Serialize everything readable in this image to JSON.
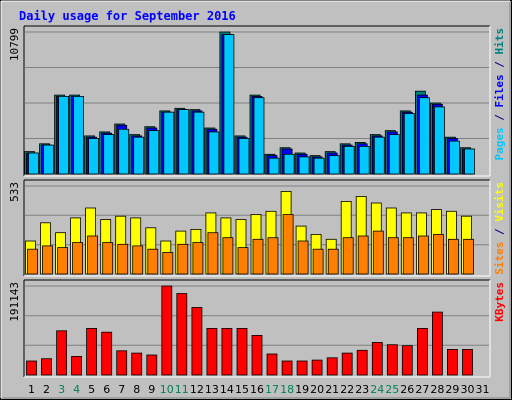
{
  "chart_data": {
    "type": "bar",
    "title": "Daily usage for September 2016",
    "days": [
      "1",
      "2",
      "3",
      "4",
      "5",
      "6",
      "7",
      "8",
      "9",
      "10",
      "11",
      "12",
      "13",
      "14",
      "15",
      "16",
      "17",
      "18",
      "19",
      "20",
      "21",
      "22",
      "23",
      "24",
      "25",
      "26",
      "27",
      "28",
      "29",
      "30",
      "31"
    ],
    "weekend_days": [
      "3",
      "4",
      "10",
      "11",
      "17",
      "18",
      "24",
      "25"
    ],
    "panels": [
      {
        "id": "hits",
        "ylabel_max": "10799",
        "ymax": 10799,
        "grid": true,
        "legend": [
          {
            "text": "Pages",
            "color": "#00c8ff"
          },
          {
            "text": " / ",
            "color": "#000080"
          },
          {
            "text": "Files",
            "color": "#0000ff"
          },
          {
            "text": " / ",
            "color": "#000080"
          },
          {
            "text": "Hits",
            "color": "#008080"
          }
        ],
        "series": [
          {
            "key": "hits",
            "color": "#008080",
            "values": [
              1700,
              2300,
              6000,
              6000,
              2900,
              3200,
              3800,
              3000,
              3600,
              4800,
              5000,
              4900,
              3500,
              10799,
              2900,
              6000,
              1500,
              2000,
              1600,
              1400,
              1700,
              2300,
              2400,
              3000,
              3300,
              4800,
              6300,
              5400,
              2800,
              2000,
              0
            ]
          },
          {
            "key": "files",
            "color": "#0000ff",
            "values": [
              1600,
              2200,
              5900,
              5900,
              2800,
              3100,
              3700,
              2900,
              3500,
              4700,
              4900,
              4800,
              3400,
              10600,
              2800,
              5900,
              1400,
              1900,
              1500,
              1300,
              1600,
              2200,
              2300,
              2900,
              3200,
              4700,
              6000,
              5300,
              2700,
              1900,
              0
            ]
          },
          {
            "key": "pages",
            "color": "#00c8ff",
            "values": [
              1600,
              2200,
              5900,
              5900,
              2700,
              3000,
              3400,
              2800,
              3300,
              4700,
              4900,
              4700,
              3200,
              10600,
              2700,
              5800,
              1200,
              1500,
              1300,
              1200,
              1400,
              2100,
              2100,
              2800,
              3000,
              4600,
              5800,
              5100,
              2500,
              1900,
              0
            ]
          }
        ]
      },
      {
        "id": "visits",
        "ylabel_max": "533",
        "ymax": 533,
        "grid": true,
        "legend": [
          {
            "text": "Sites",
            "color": "#ff8000"
          },
          {
            "text": " / ",
            "color": "#000080"
          },
          {
            "text": "Visits",
            "color": "#ffff00"
          }
        ],
        "series": [
          {
            "key": "visits",
            "color": "#ffff00",
            "values": [
              200,
              310,
              250,
              340,
              400,
              330,
              350,
              340,
              280,
              200,
              260,
              270,
              370,
              340,
              330,
              360,
              380,
              500,
              290,
              240,
              210,
              440,
              470,
              430,
              400,
              370,
              370,
              390,
              380,
              350,
              0
            ]
          },
          {
            "key": "sites",
            "color": "#ff8000",
            "values": [
              150,
              170,
              160,
              190,
              230,
              190,
              180,
              170,
              150,
              130,
              180,
              190,
              250,
              220,
              160,
              210,
              220,
              360,
              200,
              150,
              150,
              220,
              230,
              260,
              220,
              220,
              230,
              240,
              210,
              210,
              0
            ]
          }
        ]
      },
      {
        "id": "kbytes",
        "ylabel_max": "191143",
        "ymax": 191143,
        "grid": true,
        "legend": [
          {
            "text": "KBytes",
            "color": "#ff0000"
          }
        ],
        "series": [
          {
            "key": "kbytes",
            "color": "#ff0000",
            "values": [
              30000,
              35000,
              95000,
              40000,
              100000,
              92000,
              52000,
              47000,
              43000,
              191143,
              175000,
              145000,
              100000,
              100000,
              100000,
              85000,
              45000,
              30000,
              30000,
              32000,
              37000,
              47000,
              53000,
              70000,
              65000,
              63000,
              100000,
              135000,
              55000,
              55000,
              0
            ]
          }
        ]
      }
    ]
  },
  "colors": {
    "background": "#c0c0c0",
    "plot_background": "#c0c0c0",
    "title": "#0000ff",
    "axis_text": "#000000",
    "weekend_text": "#00805c",
    "frame_dark": "#808080",
    "frame_light": "#ffffff"
  }
}
